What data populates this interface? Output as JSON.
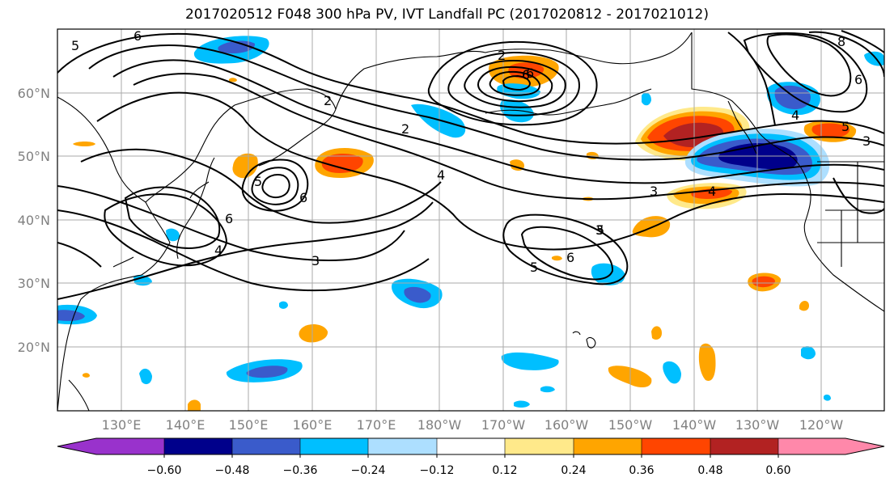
{
  "title": "2017020512 F048 300 hPa PV, IVT Landfall PC (2017020812 - 2017021012)",
  "lat_labels": [
    "60°N",
    "50°N",
    "40°N",
    "30°N",
    "20°N"
  ],
  "lon_labels": [
    "130°E",
    "140°E",
    "150°E",
    "160°E",
    "170°E",
    "180°W",
    "170°W",
    "160°W",
    "150°W",
    "140°W",
    "130°W",
    "120°W"
  ],
  "contour_labels": [
    "6",
    "5",
    "2",
    "4",
    "3",
    "6",
    "5",
    "5",
    "6",
    "2",
    "4",
    "3",
    "6",
    "6",
    "4",
    "3",
    "5",
    "4",
    "5",
    "6",
    "8",
    "3",
    "2",
    "6"
  ],
  "colorbar": {
    "ticks": [
      "−0.60",
      "−0.48",
      "−0.36",
      "−0.24",
      "−0.12",
      "0.12",
      "0.24",
      "0.36",
      "0.48",
      "0.60"
    ],
    "colors": [
      "#9932CC",
      "#00008B",
      "#3A5BCB",
      "#00BFFF",
      "#ADDFFF",
      "#FFFFFF",
      "#FFE98A",
      "#FFA500",
      "#FF4500",
      "#B22222",
      "#FF88AA"
    ]
  },
  "colors": {
    "neg_strong": "#00008B",
    "neg_mid": "#3A5BCB",
    "neg_light": "#00BFFF",
    "neg_faint": "#ADDFFF",
    "pos_faint": "#FFE98A",
    "pos_light": "#FFA500",
    "pos_mid": "#FF4500",
    "pos_strong": "#B22222"
  }
}
